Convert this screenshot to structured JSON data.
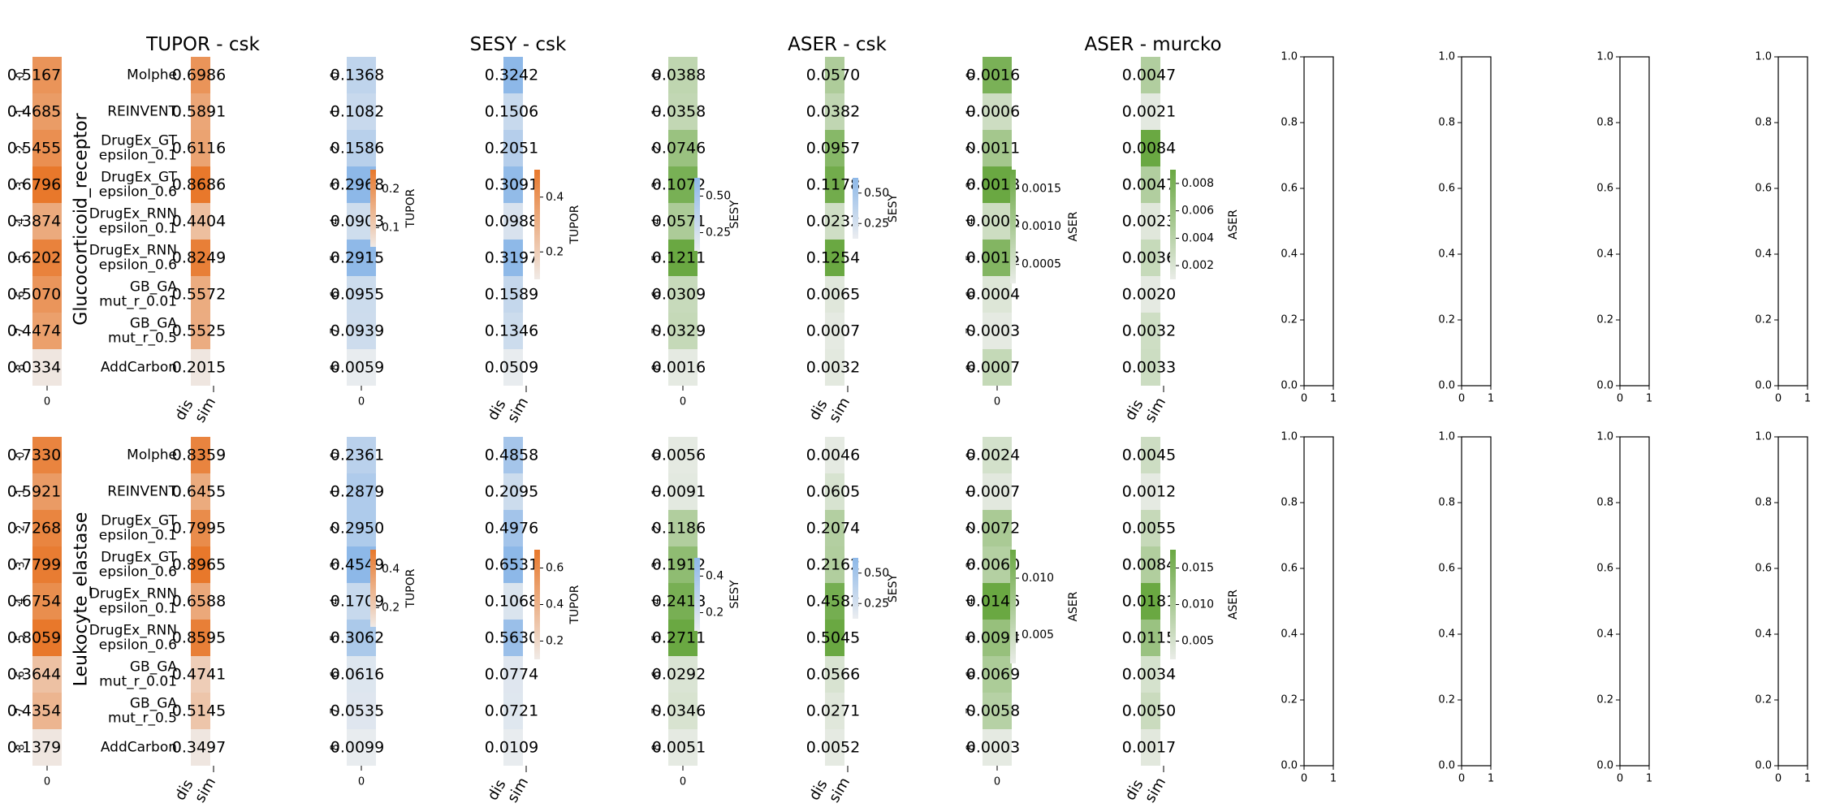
{
  "chart_data": {
    "type": "heatmap",
    "column_titles": [
      "TUPOR - csk",
      "SESY - csk",
      "ASER - csk",
      "ASER - murcko"
    ],
    "row_titles": [
      "Glucocorticoid_receptor",
      "Leukocyte_elastase"
    ],
    "methods": [
      "Molphe",
      "REINVENT",
      "DrugEx_GT\nepsilon_0.1",
      "DrugEx_GT\nepsilon_0.6",
      "DrugEx_RNN\nepsilon_0.1",
      "DrugEx_RNN\nepsilon_0.6",
      "GB_GA\nmut_r_0.01",
      "GB_GA\nmut_r_0.5",
      "AddCarbon"
    ],
    "row_index_labels": [
      "0",
      "1",
      "2",
      "3",
      "4",
      "5",
      "6",
      "7",
      "8"
    ],
    "col_index_label": "0",
    "pair_xticks": [
      "dis",
      "sim"
    ],
    "metric_colors": {
      "TUPOR": "#e8782b",
      "SESY": "#8db8e8",
      "ASER": "#6aa842"
    },
    "colorbar_labels": [
      "TUPOR",
      "TUPOR",
      "SESY",
      "SESY",
      "ASER",
      "ASER"
    ],
    "colorbars": [
      [
        {
          "metric": "TUPOR",
          "ticks": [
            "0.1",
            "0.2"
          ]
        },
        {
          "metric": "TUPOR",
          "ticks": [
            "0.2",
            "0.4"
          ]
        },
        {
          "metric": "SESY",
          "ticks": [
            "0.25",
            "0.50"
          ]
        },
        {
          "metric": "SESY",
          "ticks": [
            "0.25",
            "0.50"
          ]
        },
        {
          "metric": "ASER",
          "ticks": [
            "0.0005",
            "0.0010",
            "0.0015"
          ]
        },
        {
          "metric": "ASER",
          "ticks": [
            "0.002",
            "0.004",
            "0.006",
            "0.008"
          ]
        }
      ],
      [
        {
          "metric": "TUPOR",
          "ticks": [
            "0.2",
            "0.4"
          ]
        },
        {
          "metric": "TUPOR",
          "ticks": [
            "0.2",
            "0.4",
            "0.6"
          ]
        },
        {
          "metric": "SESY",
          "ticks": [
            "0.2",
            "0.4"
          ]
        },
        {
          "metric": "SESY",
          "ticks": [
            "0.25",
            "0.50"
          ]
        },
        {
          "metric": "ASER",
          "ticks": [
            "0.005",
            "0.010"
          ]
        },
        {
          "metric": "ASER",
          "ticks": [
            "0.005",
            "0.010",
            "0.015"
          ]
        }
      ]
    ],
    "blocks": [
      {
        "tupor_single": [
          "0.5167",
          "0.4685",
          "0.5455",
          "0.6796",
          "0.3874",
          "0.6202",
          "0.5070",
          "0.4474",
          "0.0334"
        ],
        "tupor_pair": [
          "0.6986",
          "0.5891",
          "0.6116",
          "0.8686",
          "0.4404",
          "0.8249",
          "0.5572",
          "0.5525",
          "0.2015"
        ],
        "sesy_single": [
          "0.1368",
          "0.1082",
          "0.1586",
          "0.2968",
          "0.0903",
          "0.2915",
          "0.0955",
          "0.0939",
          "0.0059"
        ],
        "sesy_pair": [
          "0.3242",
          "0.1506",
          "0.2051",
          "0.3091",
          "0.0988",
          "0.3197",
          "0.1589",
          "0.1346",
          "0.0509"
        ],
        "aser_single": [
          "0.0388",
          "0.0358",
          "0.0746",
          "0.1072",
          "0.0571",
          "0.1211",
          "0.0309",
          "0.0329",
          "0.0016"
        ],
        "aser_pair": [
          "0.0570",
          "0.0382",
          "0.0957",
          "0.1178",
          "0.0232",
          "0.1254",
          "0.0065",
          "0.0007",
          "0.0032"
        ],
        "aser_murcko_single": [
          "0.0016",
          "0.0006",
          "0.0011",
          "0.0018",
          "0.0006",
          "0.0015",
          "0.0004",
          "0.0003",
          "0.0007"
        ],
        "aser_murcko_pair": [
          "0.0047",
          "0.0021",
          "0.0084",
          "0.0047",
          "0.0023",
          "0.0036",
          "0.0020",
          "0.0032",
          "0.0033"
        ]
      },
      {
        "tupor_single": [
          "0.7330",
          "0.5921",
          "0.7268",
          "0.7799",
          "0.6754",
          "0.8059",
          "0.3644",
          "0.4354",
          "0.1379"
        ],
        "tupor_pair": [
          "0.8359",
          "0.6455",
          "0.7995",
          "0.8965",
          "0.6588",
          "0.8595",
          "0.4741",
          "0.5145",
          "0.3497"
        ],
        "sesy_single": [
          "0.2361",
          "0.2879",
          "0.2950",
          "0.4549",
          "0.1709",
          "0.3062",
          "0.0616",
          "0.0535",
          "0.0099"
        ],
        "sesy_pair": [
          "0.4858",
          "0.2095",
          "0.4976",
          "0.6531",
          "0.1068",
          "0.5630",
          "0.0774",
          "0.0721",
          "0.0109"
        ],
        "aser_single": [
          "0.0056",
          "0.0091",
          "0.1186",
          "0.1912",
          "0.2418",
          "0.2711",
          "0.0292",
          "0.0346",
          "0.0051"
        ],
        "aser_pair": [
          "0.0046",
          "0.0605",
          "0.2074",
          "0.2162",
          "0.4582",
          "0.5045",
          "0.0566",
          "0.0271",
          "0.0052"
        ],
        "aser_murcko_single": [
          "0.0024",
          "0.0007",
          "0.0072",
          "0.0060",
          "0.0146",
          "0.0094",
          "0.0069",
          "0.0058",
          "0.0003"
        ],
        "aser_murcko_pair": [
          "0.0045",
          "0.0012",
          "0.0055",
          "0.0084",
          "0.0181",
          "0.0115",
          "0.0034",
          "0.0050",
          "0.0017"
        ]
      }
    ],
    "empty_axes": {
      "yticks": [
        "0.0",
        "0.2",
        "0.4",
        "0.6",
        "0.8",
        "1.0"
      ],
      "xticks": [
        "0",
        "1"
      ],
      "ylim": [
        0,
        1
      ],
      "xlim": [
        0,
        1
      ]
    }
  }
}
